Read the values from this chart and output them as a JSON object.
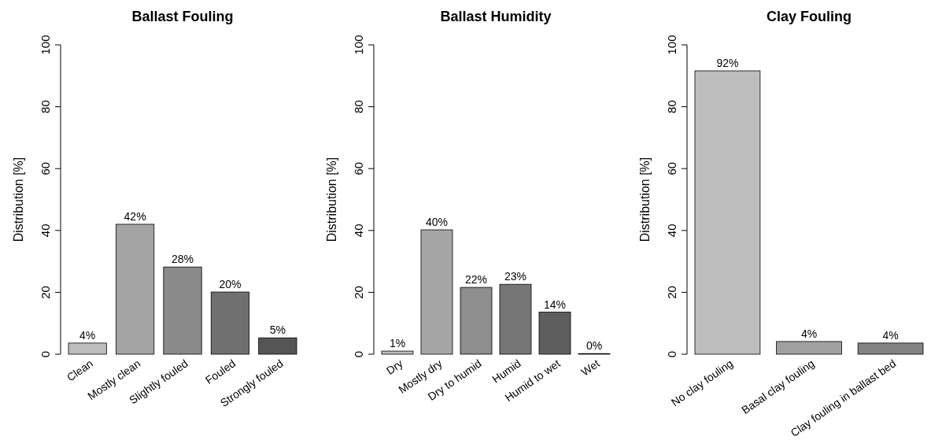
{
  "chart_data": [
    {
      "type": "bar",
      "title": "Ballast Fouling",
      "ylabel": "Distribution [%]",
      "categories": [
        "Clean",
        "Mostly clean",
        "Slightly fouled",
        "Fouled",
        "Strongly fouled"
      ],
      "values": [
        3.6,
        42,
        28.2,
        20.1,
        5.3
      ],
      "colors": [
        "#bebebe",
        "#a3a3a3",
        "#8a8a8a",
        "#707070",
        "#555555"
      ],
      "value_labels": [
        "4%",
        "42%",
        "28%",
        "20%",
        "5%"
      ],
      "ylim": [
        0,
        100
      ],
      "yticks": [
        0,
        20,
        40,
        60,
        80,
        100
      ]
    },
    {
      "type": "bar",
      "title": "Ballast Humidity",
      "ylabel": "Distribution [%]",
      "categories": [
        "Dry",
        "Mostly dry",
        "Dry to humid",
        "Humid",
        "Humid to wet",
        "Wet"
      ],
      "values": [
        1,
        40.2,
        21.6,
        22.6,
        13.6,
        0.2
      ],
      "colors": [
        "#bebebe",
        "#a6a6a6",
        "#8e8e8e",
        "#767676",
        "#5e5e5e",
        "#474747"
      ],
      "value_labels": [
        "1%",
        "40%",
        "22%",
        "23%",
        "14%",
        "0%"
      ],
      "ylim": [
        0,
        100
      ],
      "yticks": [
        0,
        20,
        40,
        60,
        80,
        100
      ]
    },
    {
      "type": "bar",
      "title": "Clay Fouling",
      "ylabel": "Distribution [%]",
      "categories": [
        "No clay fouling",
        "Basal clay fouling",
        "Clay fouling in ballast bed"
      ],
      "values": [
        91.6,
        4.1,
        3.6
      ],
      "colors": [
        "#bebebe",
        "#a0a0a0",
        "#838383"
      ],
      "value_labels": [
        "92%",
        "4%",
        "4%"
      ],
      "ylim": [
        0,
        100
      ],
      "yticks": [
        0,
        20,
        40,
        60,
        80,
        100
      ]
    }
  ]
}
